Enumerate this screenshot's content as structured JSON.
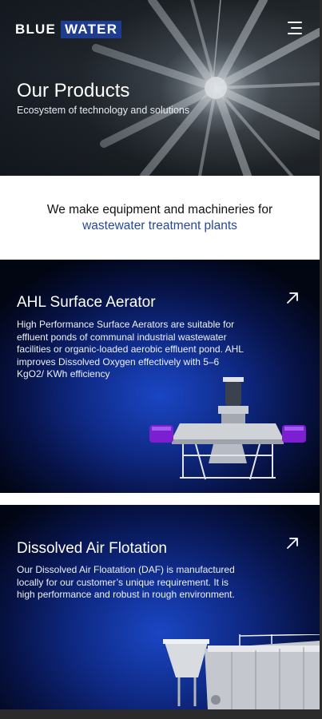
{
  "header": {
    "logo_word1": "BLUE",
    "logo_word2": "WATER",
    "menu_icon": "hamburger-menu-icon"
  },
  "hero": {
    "title": "Our Products",
    "subtitle": "Ecosystem of technology and solutions"
  },
  "intro": {
    "line1": "We make equipment and machineries for",
    "line2": "wastewater treatment plants"
  },
  "products": [
    {
      "title": "AHL Surface Aerator",
      "description": "High Performance Surface Aerators are suitable for effluent ponds of communal industrial wastewater facilities or organic-loaded aerobic effluent pond. AHL improves Dissolved Oxygen effectively with 5–6 KgO2/ KWh efficiency",
      "icon": "arrow-up-right-icon"
    },
    {
      "title": "Dissolved Air Flotation",
      "description": "Our Dissolved Air Floatation (DAF) is manufactured locally for our customer’s unique requirement. It is high performance and robust in rough environment.",
      "icon": "arrow-up-right-icon"
    }
  ],
  "colors": {
    "brand_blue": "#1f3d8f",
    "link_blue": "#25489a",
    "card_glow": "#1a46c4"
  }
}
